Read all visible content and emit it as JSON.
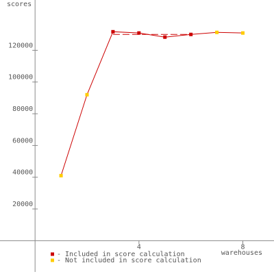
{
  "chart_data": {
    "type": "line",
    "y_label": "scores",
    "x_label": "warehouses",
    "x": [
      1,
      2,
      3,
      4,
      5,
      6,
      7,
      8
    ],
    "line_color": "#cc0000",
    "series": [
      {
        "name": "- Included in score calculation",
        "color": "#cc0000",
        "values": [
          null,
          null,
          131700,
          130900,
          128300,
          130000,
          null,
          null
        ]
      },
      {
        "name": "- Not included in score calculation",
        "color": "#ffcc00",
        "values": [
          41000,
          92000,
          null,
          null,
          null,
          null,
          131300,
          130900
        ]
      }
    ],
    "score_line": {
      "value": 130000,
      "x": [
        3,
        6
      ]
    },
    "xlim": [
      -1.35,
      9.2
    ],
    "ylim": [
      -21000,
      151700
    ],
    "xticks": [
      4,
      8
    ],
    "yticks": [
      20000,
      40000,
      60000,
      80000,
      100000,
      120000
    ]
  }
}
